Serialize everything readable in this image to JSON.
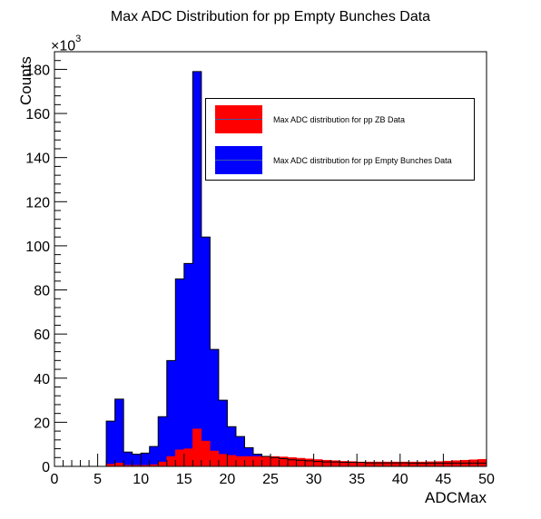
{
  "chart_data": {
    "type": "bar",
    "title": "Max ADC Distribution for pp Empty Bunches Data",
    "xlabel": "ADCMax",
    "ylabel": "Counts",
    "y_exponent_label": "×10",
    "y_exponent": "3",
    "xlim": [
      0,
      50
    ],
    "ylim": [
      0,
      188
    ],
    "x_ticks": [
      0,
      5,
      10,
      15,
      20,
      25,
      30,
      35,
      40,
      45,
      50
    ],
    "y_ticks": [
      0,
      20,
      40,
      60,
      80,
      100,
      120,
      140,
      160,
      180
    ],
    "bin_width": 1,
    "bin_edges_start": 0,
    "legend_position": "top-right",
    "series": [
      {
        "name": "Max ADC distribution for pp Empty Bunches Data",
        "color": "#0000ff",
        "values": [
          0,
          0,
          0,
          0,
          0,
          0,
          20.5,
          30.5,
          6.5,
          5.5,
          6.0,
          9.0,
          22.5,
          48.0,
          85.0,
          92.0,
          179.0,
          104.0,
          53.0,
          30.0,
          18.0,
          13.5,
          8.5,
          5.5,
          4.5,
          4.0,
          3.5,
          3.0,
          2.8,
          2.5,
          2.2,
          2.0,
          2.0,
          1.8,
          1.8,
          1.8,
          1.6,
          1.6,
          1.6,
          1.6,
          1.6,
          1.5,
          1.5,
          1.5,
          1.5,
          1.5,
          1.5,
          1.5,
          1.5,
          1.5
        ]
      },
      {
        "name": "Max ADC distribution for pp ZB Data",
        "color": "#ff0000",
        "values": [
          0,
          0,
          0,
          0,
          0,
          0,
          1.0,
          1.5,
          0.5,
          0.5,
          0.5,
          0.8,
          2.0,
          4.5,
          7.5,
          8.0,
          17.0,
          11.5,
          7.0,
          5.5,
          5.0,
          4.5,
          4.5,
          4.5,
          4.5,
          4.5,
          4.3,
          4.0,
          3.7,
          3.4,
          3.1,
          2.8,
          2.6,
          2.3,
          2.2,
          2.0,
          2.0,
          2.0,
          2.0,
          2.0,
          2.0,
          2.0,
          2.0,
          2.1,
          2.2,
          2.4,
          2.6,
          2.8,
          3.0,
          3.2
        ]
      }
    ]
  }
}
